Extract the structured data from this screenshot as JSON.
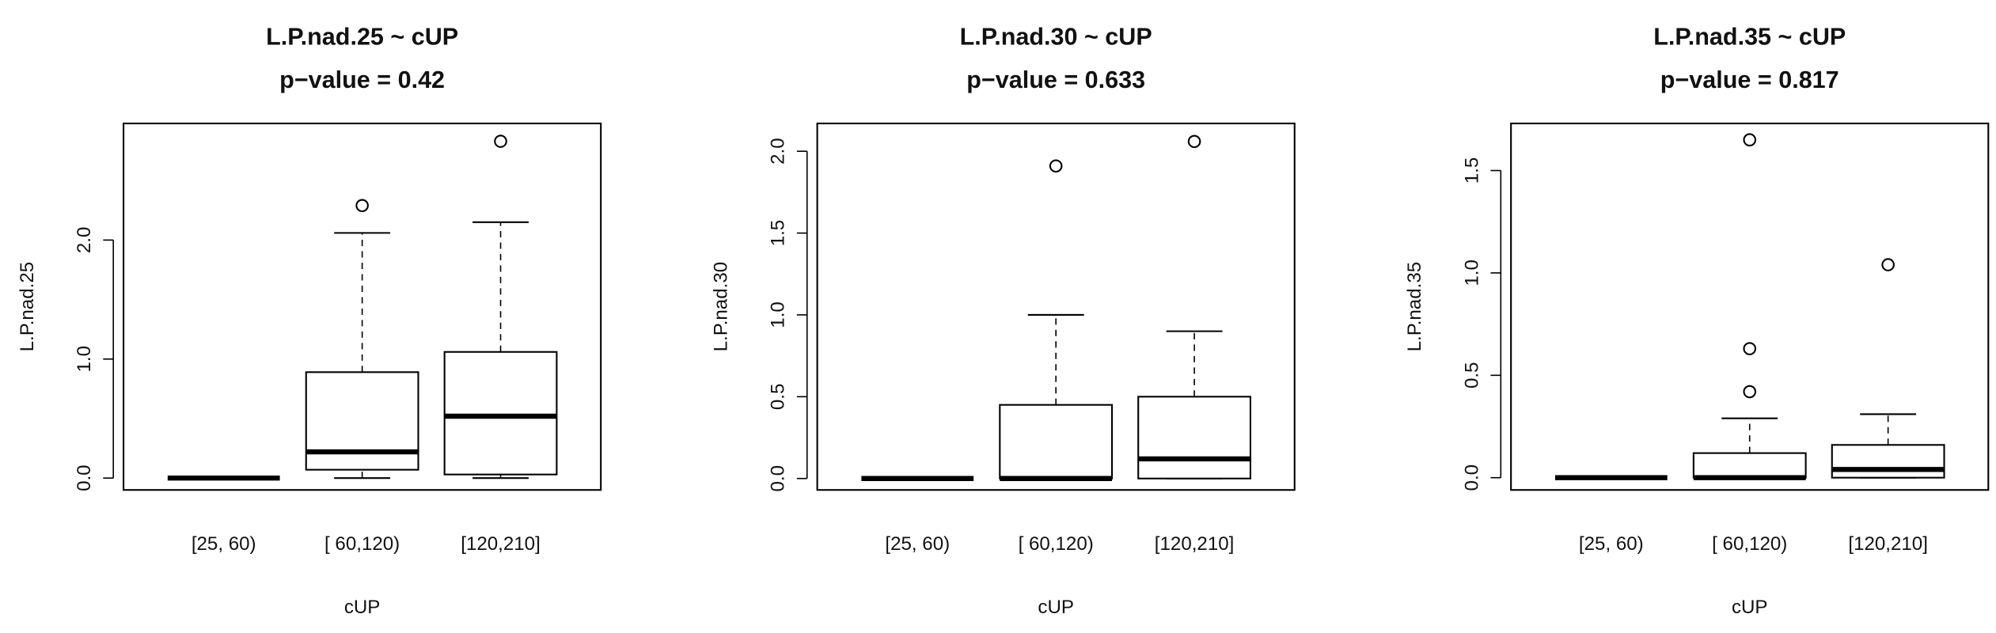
{
  "chart_data": [
    {
      "type": "box",
      "title": "L.P.nad.25 ~ cUP",
      "subtitle": "p−value = 0.42",
      "xlabel": "cUP",
      "ylabel": "L.P.nad.25",
      "categories": [
        "[25, 60)",
        "[ 60,120)",
        "[120,210]"
      ],
      "boxes": [
        {
          "min": 0,
          "q1": 0,
          "median": 0,
          "q3": 0,
          "max": 0,
          "outliers": []
        },
        {
          "min": 0,
          "q1": 0.07,
          "median": 0.22,
          "q3": 0.89,
          "max": 2.06,
          "outliers": [
            2.29
          ]
        },
        {
          "min": 0,
          "q1": 0.03,
          "median": 0.52,
          "q3": 1.06,
          "max": 2.15,
          "outliers": [
            2.83
          ]
        }
      ],
      "ylim": [
        -0.1,
        2.98
      ],
      "yticks": [
        {
          "value": 0,
          "label": "0.0"
        },
        {
          "value": 1,
          "label": "1.0"
        },
        {
          "value": 2,
          "label": "2.0"
        }
      ]
    },
    {
      "type": "box",
      "title": "L.P.nad.30 ~ cUP",
      "subtitle": "p−value = 0.633",
      "xlabel": "cUP",
      "ylabel": "L.P.nad.30",
      "categories": [
        "[25, 60)",
        "[ 60,120)",
        "[120,210]"
      ],
      "boxes": [
        {
          "min": 0,
          "q1": 0,
          "median": 0,
          "q3": 0,
          "max": 0,
          "outliers": []
        },
        {
          "min": 0,
          "q1": 0,
          "median": 0,
          "q3": 0.45,
          "max": 1.0,
          "outliers": [
            1.91
          ]
        },
        {
          "min": 0,
          "q1": 0,
          "median": 0.12,
          "q3": 0.5,
          "max": 0.9,
          "outliers": [
            2.06
          ]
        }
      ],
      "ylim": [
        -0.07,
        2.17
      ],
      "yticks": [
        {
          "value": 0,
          "label": "0.0"
        },
        0.5,
        {
          "value": 1,
          "label": "1.0"
        },
        1.5,
        {
          "value": 2,
          "label": "2.0"
        }
      ]
    },
    {
      "type": "box",
      "title": "L.P.nad.35 ~ cUP",
      "subtitle": "p−value = 0.817",
      "xlabel": "cUP",
      "ylabel": "L.P.nad.35",
      "categories": [
        "[25, 60)",
        "[ 60,120)",
        "[120,210]"
      ],
      "boxes": [
        {
          "min": 0,
          "q1": 0,
          "median": 0,
          "q3": 0,
          "max": 0,
          "outliers": []
        },
        {
          "min": 0,
          "q1": 0,
          "median": 0,
          "q3": 0.12,
          "max": 0.29,
          "outliers": [
            0.42,
            0.63,
            1.65
          ]
        },
        {
          "min": 0,
          "q1": 0,
          "median": 0.04,
          "q3": 0.16,
          "max": 0.31,
          "outliers": [
            1.04
          ]
        }
      ],
      "ylim": [
        -0.06,
        1.73
      ],
      "yticks": [
        {
          "value": 0,
          "label": "0.0"
        },
        0.5,
        {
          "value": 1,
          "label": "1.0"
        },
        1.5
      ]
    }
  ]
}
